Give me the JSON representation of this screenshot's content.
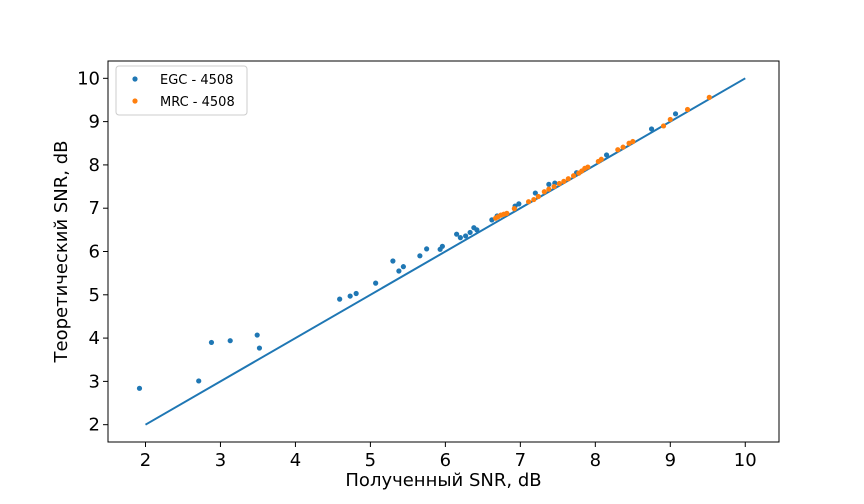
{
  "chart_data": {
    "type": "scatter",
    "title": "",
    "xlabel": "Полученный SNR, dB",
    "ylabel": "Теоретический SNR, dB",
    "xlim": [
      1.5,
      10.45
    ],
    "ylim": [
      1.6,
      10.4
    ],
    "xticks": [
      "2",
      "3",
      "4",
      "5",
      "6",
      "7",
      "8",
      "9",
      "10"
    ],
    "yticks": [
      "2",
      "3",
      "4",
      "5",
      "6",
      "7",
      "8",
      "9",
      "10"
    ],
    "grid": false,
    "legend_position": "top-left",
    "series": [
      {
        "name": "EGC - 4508",
        "kind": "scatter",
        "color": "#1f77b4",
        "points": [
          [
            1.92,
            2.84
          ],
          [
            2.71,
            3.01
          ],
          [
            2.88,
            3.9
          ],
          [
            3.13,
            3.94
          ],
          [
            3.49,
            4.07
          ],
          [
            3.52,
            3.77
          ],
          [
            4.59,
            4.9
          ],
          [
            4.73,
            4.97
          ],
          [
            4.81,
            5.03
          ],
          [
            5.07,
            5.27
          ],
          [
            5.3,
            5.78
          ],
          [
            5.38,
            5.55
          ],
          [
            5.44,
            5.65
          ],
          [
            5.66,
            5.9
          ],
          [
            5.75,
            6.06
          ],
          [
            5.93,
            6.05
          ],
          [
            5.96,
            6.12
          ],
          [
            6.15,
            6.4
          ],
          [
            6.2,
            6.32
          ],
          [
            6.27,
            6.36
          ],
          [
            6.33,
            6.44
          ],
          [
            6.38,
            6.55
          ],
          [
            6.42,
            6.5
          ],
          [
            6.62,
            6.73
          ],
          [
            6.69,
            6.82
          ],
          [
            6.93,
            7.05
          ],
          [
            6.98,
            7.1
          ],
          [
            7.2,
            7.35
          ],
          [
            7.38,
            7.55
          ],
          [
            7.46,
            7.58
          ],
          [
            7.75,
            7.82
          ],
          [
            8.15,
            8.23
          ],
          [
            8.75,
            8.83
          ],
          [
            9.07,
            9.18
          ]
        ]
      },
      {
        "name": "MRC - 4508",
        "kind": "scatter",
        "color": "#ff7f0e",
        "points": [
          [
            6.67,
            6.77
          ],
          [
            6.7,
            6.8
          ],
          [
            6.74,
            6.84
          ],
          [
            6.78,
            6.86
          ],
          [
            6.82,
            6.88
          ],
          [
            6.92,
            6.99
          ],
          [
            7.11,
            7.15
          ],
          [
            7.18,
            7.2
          ],
          [
            7.24,
            7.27
          ],
          [
            7.32,
            7.38
          ],
          [
            7.38,
            7.44
          ],
          [
            7.45,
            7.5
          ],
          [
            7.52,
            7.57
          ],
          [
            7.58,
            7.62
          ],
          [
            7.64,
            7.68
          ],
          [
            7.71,
            7.75
          ],
          [
            7.78,
            7.81
          ],
          [
            7.82,
            7.86
          ],
          [
            7.86,
            7.92
          ],
          [
            7.9,
            7.95
          ],
          [
            8.04,
            8.08
          ],
          [
            8.08,
            8.13
          ],
          [
            8.3,
            8.35
          ],
          [
            8.37,
            8.41
          ],
          [
            8.45,
            8.5
          ],
          [
            8.5,
            8.54
          ],
          [
            8.91,
            8.9
          ],
          [
            9.0,
            9.05
          ],
          [
            9.23,
            9.28
          ],
          [
            9.52,
            9.56
          ]
        ]
      },
      {
        "name": "",
        "kind": "line",
        "color": "#1f77b4",
        "points": [
          [
            2,
            2
          ],
          [
            10,
            10
          ]
        ]
      }
    ]
  }
}
